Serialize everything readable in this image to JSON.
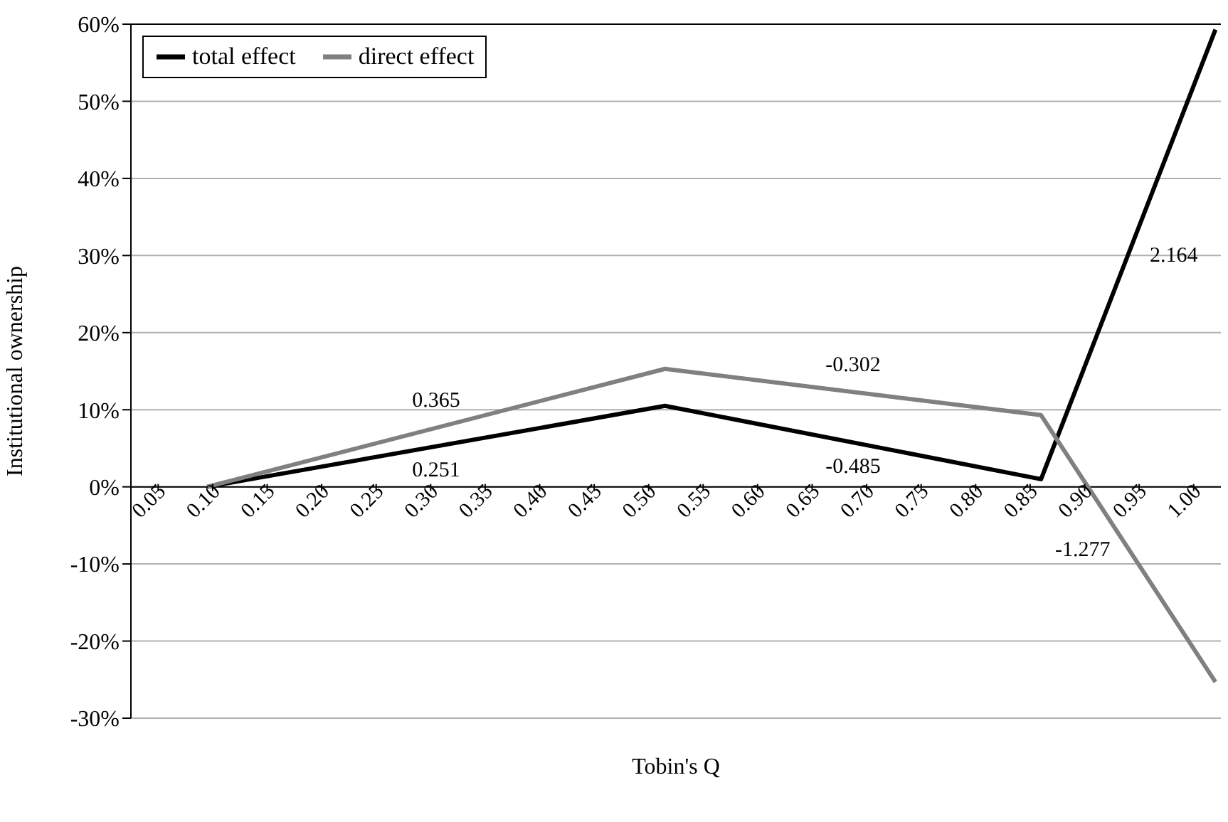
{
  "chart_data": {
    "type": "line",
    "xlabel": "Tobin's Q",
    "ylabel": "Institutional ownership",
    "x": [
      0.095,
      0.515,
      0.86,
      1.02
    ],
    "series": [
      {
        "name": "total effect",
        "color": "#000000",
        "values": [
          0,
          10.5,
          1,
          59.3
        ]
      },
      {
        "name": "direct effect",
        "color": "#808080",
        "values": [
          0,
          15.3,
          9.3,
          -25.3
        ]
      }
    ],
    "xlim": [
      0.025,
      1.025
    ],
    "xticks": [
      {
        "value": 0.05,
        "label": "0.05"
      },
      {
        "value": 0.1,
        "label": "0.10"
      },
      0.15,
      {
        "value": 0.2,
        "label": "0.20"
      },
      0.25,
      {
        "value": 0.3,
        "label": "0.30"
      },
      0.35,
      {
        "value": 0.4,
        "label": "0.40"
      },
      0.45,
      {
        "value": 0.5,
        "label": "0.50"
      },
      0.55,
      {
        "value": 0.6,
        "label": "0.60"
      },
      0.65,
      {
        "value": 0.7,
        "label": "0.70"
      },
      0.75,
      {
        "value": 0.8,
        "label": "0.80"
      },
      0.85,
      {
        "value": 0.9,
        "label": "0.90"
      },
      0.95,
      {
        "value": 1.0,
        "label": "1.00"
      }
    ],
    "ylim": [
      -30,
      60
    ],
    "yticks": [
      {
        "value": -30,
        "label": "-30%"
      },
      {
        "value": -20,
        "label": "-20%"
      },
      {
        "value": -10,
        "label": "-10%"
      },
      {
        "value": 0,
        "label": "0%"
      },
      {
        "value": 10,
        "label": "10%"
      },
      {
        "value": 20,
        "label": "20%"
      },
      {
        "value": 30,
        "label": "30%"
      },
      {
        "value": 40,
        "label": "40%"
      },
      {
        "value": 50,
        "label": "50%"
      },
      {
        "value": 60,
        "label": "60%"
      }
    ],
    "annotations": [
      {
        "text": "0.365",
        "x": 0.305,
        "y": 7.65
      },
      {
        "text": "0.251",
        "x": 0.305,
        "y": 5.25
      },
      {
        "text": "-0.302",
        "x": 0.6875,
        "y": 12.3
      },
      {
        "text": "-0.485",
        "x": 0.6875,
        "y": 5.75
      },
      {
        "text": "2.164",
        "x": 0.94,
        "y": 30.15
      },
      {
        "text": "-1.277",
        "x": 0.94,
        "y": -8
      }
    ],
    "grid": "y",
    "legend": "top left",
    "marker": "none",
    "line_style": "solid"
  }
}
